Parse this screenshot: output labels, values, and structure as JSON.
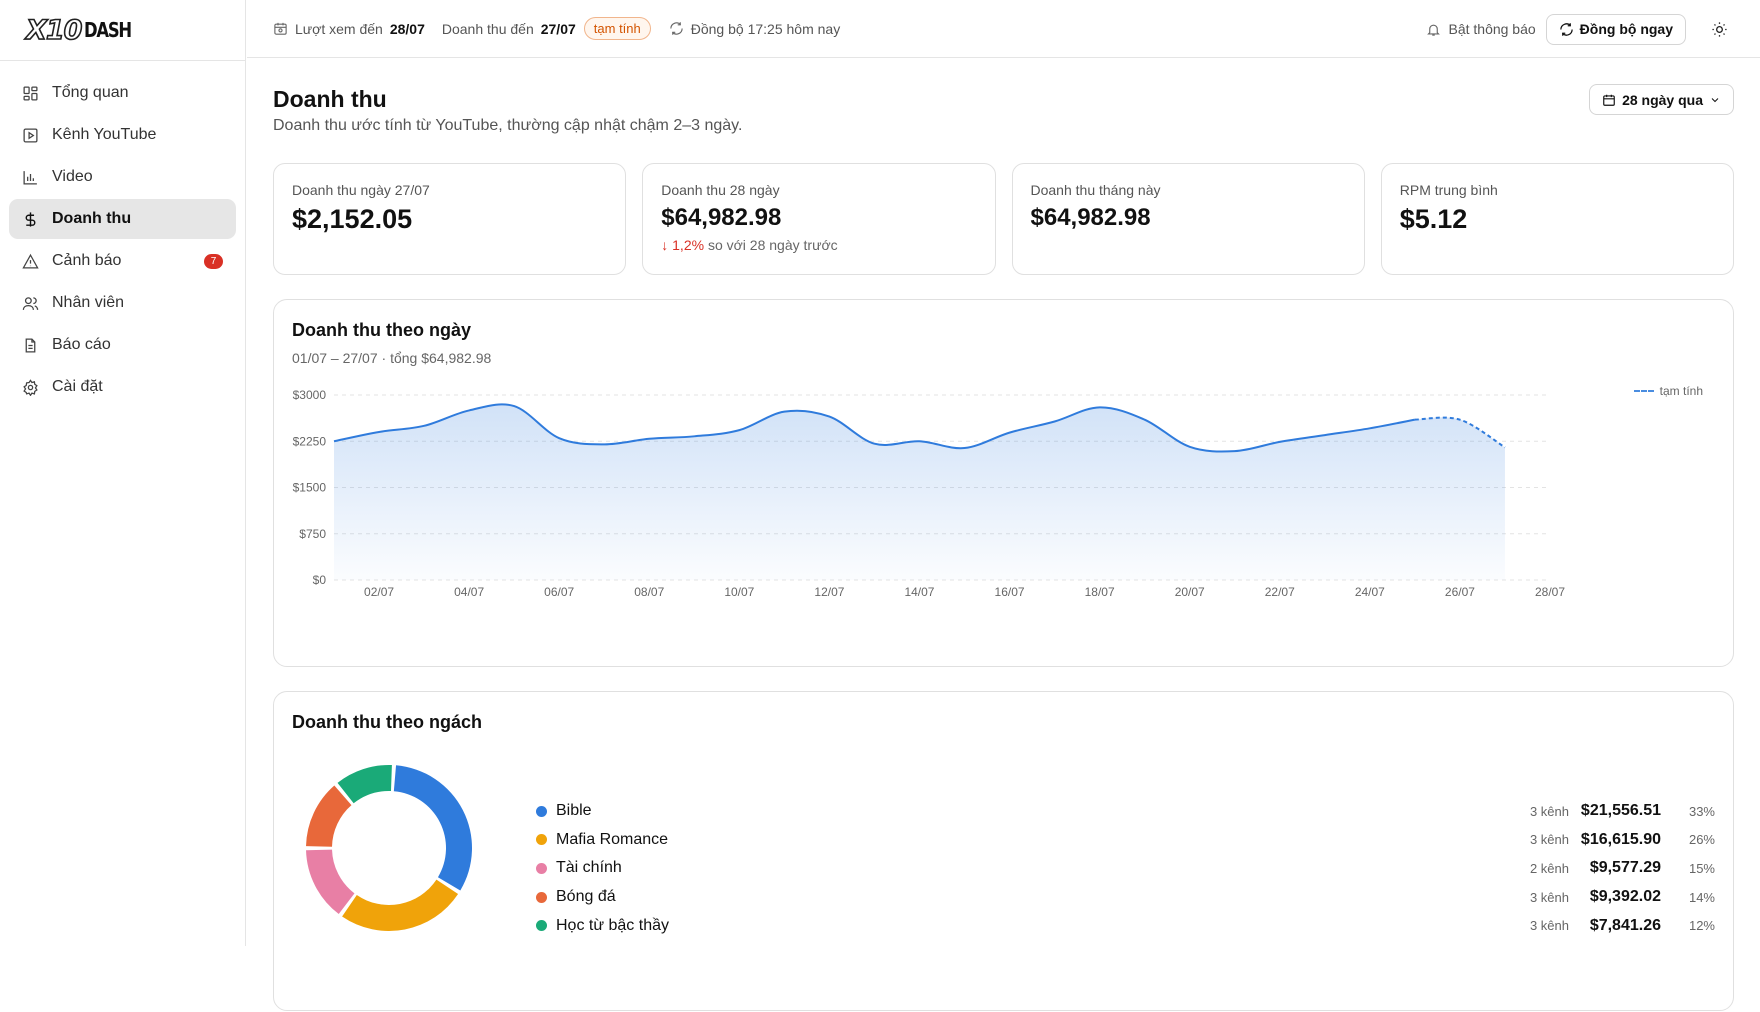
{
  "logo": {
    "main": "X10",
    "sub": "DASH"
  },
  "sidebar": {
    "items": [
      {
        "label": "Tổng quan",
        "icon": "grid-icon"
      },
      {
        "label": "Kênh YouTube",
        "icon": "play-square-icon"
      },
      {
        "label": "Video",
        "icon": "bar-chart-icon"
      },
      {
        "label": "Doanh thu",
        "icon": "dollar-icon",
        "active": true
      },
      {
        "label": "Cảnh báo",
        "icon": "warning-icon",
        "badge": "7"
      },
      {
        "label": "Nhân viên",
        "icon": "users-icon"
      },
      {
        "label": "Báo cáo",
        "icon": "document-icon"
      },
      {
        "label": "Cài đặt",
        "icon": "gear-icon"
      }
    ]
  },
  "topbar": {
    "views_label": "Lượt xem đến",
    "views_date": "28/07",
    "revenue_label": "Doanh thu đến",
    "revenue_date": "27/07",
    "estimate_pill": "tạm tính",
    "sync_status": "Đồng bộ 17:25 hôm nay",
    "notify_label": "Bật thông báo",
    "sync_now": "Đồng bộ ngay"
  },
  "page": {
    "title": "Doanh thu",
    "subtitle": "Doanh thu ước tính từ YouTube, thường cập nhật chậm 2–3 ngày.",
    "range": "28 ngày qua"
  },
  "kpis": [
    {
      "label": "Doanh thu ngày 27/07",
      "value": "$2,152.05"
    },
    {
      "label": "Doanh thu 28 ngày",
      "value": "$64,982.98",
      "delta": "1,2%",
      "delta_text": "so với 28 ngày trước"
    },
    {
      "label": "Doanh thu tháng này",
      "value": "$64,982.98"
    },
    {
      "label": "RPM trung bình",
      "value": "$5.12"
    }
  ],
  "daily_card": {
    "title": "Doanh thu theo ngày",
    "subtitle": "01/07 – 27/07 · tổng $64,982.98",
    "legend_estimate": "tạm tính"
  },
  "niche_card": {
    "title": "Doanh thu theo ngách",
    "rows": [
      {
        "name": "Bible",
        "channels": "3 kênh",
        "amount": "$21,556.51",
        "pct": "33%",
        "color": "#2f7bdc"
      },
      {
        "name": "Mafia Romance",
        "channels": "3 kênh",
        "amount": "$16,615.90",
        "pct": "26%",
        "color": "#f0a30a"
      },
      {
        "name": "Tài chính",
        "channels": "2 kênh",
        "amount": "$9,577.29",
        "pct": "15%",
        "color": "#e87fa5"
      },
      {
        "name": "Bóng đá",
        "channels": "3 kênh",
        "amount": "$9,392.02",
        "pct": "14%",
        "color": "#e8683a"
      },
      {
        "name": "Học từ bậc thầy",
        "channels": "3 kênh",
        "amount": "$7,841.26",
        "pct": "12%",
        "color": "#1aaa78"
      }
    ]
  },
  "chart_data": [
    {
      "type": "area",
      "x": [
        "01/07",
        "02/07",
        "03/07",
        "04/07",
        "05/07",
        "06/07",
        "07/07",
        "08/07",
        "09/07",
        "10/07",
        "11/07",
        "12/07",
        "13/07",
        "14/07",
        "15/07",
        "16/07",
        "17/07",
        "18/07",
        "19/07",
        "20/07",
        "21/07",
        "22/07",
        "23/07",
        "24/07",
        "25/07",
        "26/07",
        "27/07"
      ],
      "series": [
        {
          "values": [
            2250,
            2400,
            2500,
            2750,
            2820,
            2300,
            2200,
            2290,
            2330,
            2430,
            2730,
            2650,
            2210,
            2250,
            2140,
            2390,
            2570,
            2800,
            2600,
            2160,
            2090,
            2240,
            2350,
            2460,
            2600,
            2600,
            2150
          ]
        }
      ],
      "estimate_from": "25/07",
      "x_ticks": [
        "02/07",
        "04/07",
        "06/07",
        "08/07",
        "10/07",
        "12/07",
        "14/07",
        "16/07",
        "18/07",
        "20/07",
        "22/07",
        "24/07",
        "26/07",
        "28/07"
      ],
      "y_ticks": [
        "$0",
        "$750",
        "$1500",
        "$2250",
        "$3000"
      ],
      "ylim": [
        0,
        3000
      ],
      "grid": true,
      "legend": "top-right",
      "color": "#2f7bdc"
    },
    {
      "type": "pie",
      "categories": [
        "Bible",
        "Mafia Romance",
        "Tài chính",
        "Bóng đá",
        "Học từ bậc thầy"
      ],
      "values": [
        33,
        26,
        15,
        14,
        12
      ],
      "colors": [
        "#2f7bdc",
        "#f0a30a",
        "#e87fa5",
        "#e8683a",
        "#1aaa78"
      ]
    }
  ]
}
